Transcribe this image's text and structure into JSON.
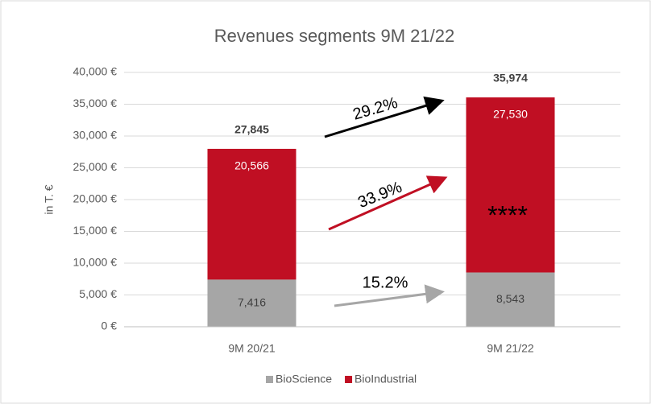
{
  "chart_data": {
    "type": "stacked_bar",
    "title": "Revenues segments 9M 21/22",
    "y_label": "in T. €",
    "categories": [
      "9M 20/21",
      "9M 21/22"
    ],
    "series": [
      {
        "name": "BioScience",
        "color": "#a6a6a6",
        "values": [
          7416,
          8543
        ],
        "value_labels": [
          "7,416",
          "8,543"
        ]
      },
      {
        "name": "BioIndustrial",
        "color": "#c00f23",
        "values": [
          20566,
          27530
        ],
        "value_labels": [
          "20,566",
          "27,530"
        ]
      }
    ],
    "totals": {
      "values": [
        27845,
        35974
      ],
      "value_labels": [
        "27,845",
        "35,974"
      ]
    },
    "annotations": [
      "29.2%",
      "33.9%",
      "15.2%",
      "****"
    ],
    "ylim": [
      0,
      40000
    ],
    "yticks": [
      {
        "value": 0,
        "label": "0 €"
      },
      {
        "value": 5000,
        "label": "5,000 €"
      },
      {
        "value": 10000,
        "label": "10,000 €"
      },
      {
        "value": 15000,
        "label": "15,000 €"
      },
      {
        "value": 20000,
        "label": "20,000 €"
      },
      {
        "value": 25000,
        "label": "25,000 €"
      },
      {
        "value": 30000,
        "label": "30,000 €"
      },
      {
        "value": 35000,
        "label": "35,000 €"
      },
      {
        "value": 40000,
        "label": "40,000 €"
      }
    ],
    "grid": true,
    "legend": "bottom"
  }
}
